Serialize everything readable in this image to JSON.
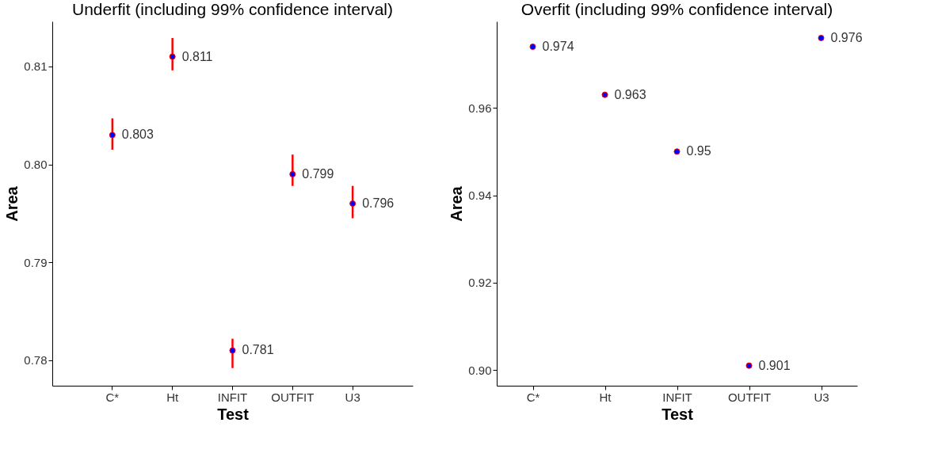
{
  "chart_data": [
    {
      "type": "scatter",
      "title": "Underfit (including 99% confidence interval)",
      "xlabel": "Test",
      "ylabel": "Area",
      "categories": [
        "C*",
        "Ht",
        "INFIT",
        "OUTFIT",
        "U3"
      ],
      "series": [
        {
          "color": "#0000ff",
          "values": [
            0.803,
            0.811,
            0.781,
            0.799,
            0.796
          ],
          "errors": [
            [
              0.8015,
              0.8047
            ],
            [
              0.8096,
              0.8129
            ],
            [
              0.7792,
              0.7822
            ],
            [
              0.7978,
              0.801
            ],
            [
              0.7945,
              0.7978
            ]
          ]
        }
      ],
      "ylim": [
        0.7774,
        0.8146
      ],
      "yticks": [
        0.78,
        0.79,
        {
          "value": 0.8,
          "label": "0.80"
        },
        0.81
      ],
      "data_labels": true,
      "grid": false
    },
    {
      "type": "scatter",
      "title": "Overfit (including 99% confidence interval)",
      "xlabel": "Test",
      "ylabel": "Area",
      "categories": [
        "C*",
        "Ht",
        "INFIT",
        "OUTFIT",
        "U3"
      ],
      "series": [
        {
          "color": "#0000ff",
          "values": [
            0.974,
            0.963,
            0.95,
            0.901,
            0.976
          ]
        }
      ],
      "ylim": [
        0.8964,
        0.9798
      ],
      "yticks": [
        {
          "value": 0.9,
          "label": "0.90"
        },
        0.92,
        0.94,
        0.96
      ],
      "data_labels": true,
      "grid": false
    }
  ]
}
